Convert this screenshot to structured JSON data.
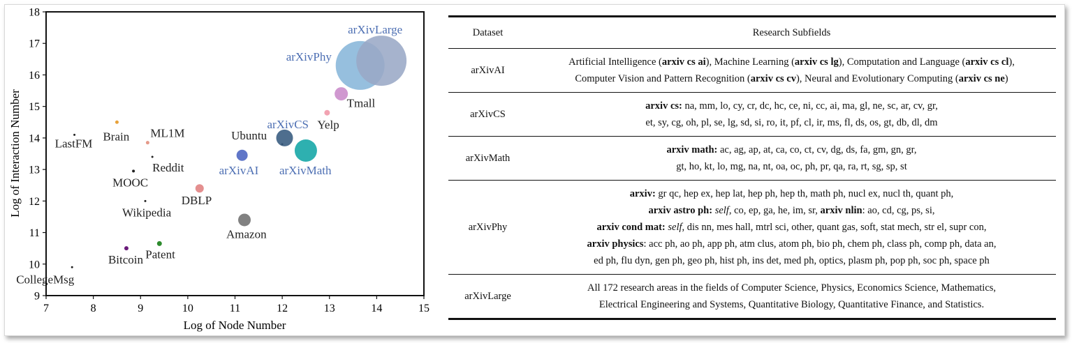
{
  "chart_data": {
    "type": "scatter",
    "xlabel": "Log of Node Number",
    "ylabel": "Log of Interaction Number",
    "xlim": [
      7,
      15
    ],
    "ylim": [
      9,
      18
    ],
    "xticks": [
      "7",
      "8",
      "9",
      "10",
      "11",
      "12",
      "13",
      "14",
      "15"
    ],
    "yticks": [
      "9",
      "10",
      "11",
      "12",
      "13",
      "14",
      "15",
      "16",
      "17",
      "18"
    ],
    "grid": false,
    "points": [
      {
        "label": "LastFM",
        "x": 7.6,
        "y": 14.1,
        "color": "#222222",
        "size": 1.5,
        "highlight": false
      },
      {
        "label": "Brain",
        "x": 8.5,
        "y": 14.5,
        "color": "#e8a23a",
        "size": 2.5,
        "highlight": false
      },
      {
        "label": "ML1M",
        "x": 9.15,
        "y": 13.85,
        "color": "#e59a8a",
        "size": 2.5,
        "highlight": false
      },
      {
        "label": "Reddit",
        "x": 9.25,
        "y": 13.4,
        "color": "#222222",
        "size": 1.5,
        "highlight": false
      },
      {
        "label": "MOOC",
        "x": 8.85,
        "y": 12.95,
        "color": "#222222",
        "size": 2,
        "highlight": false
      },
      {
        "label": "Wikipedia",
        "x": 9.1,
        "y": 12.0,
        "color": "#222222",
        "size": 1.5,
        "highlight": false
      },
      {
        "label": "DBLP",
        "x": 10.25,
        "y": 12.4,
        "color": "#e07f80",
        "size": 6,
        "highlight": false
      },
      {
        "label": "Bitcoin",
        "x": 8.7,
        "y": 10.5,
        "color": "#6a1b7a",
        "size": 3,
        "highlight": false
      },
      {
        "label": "Patent",
        "x": 9.4,
        "y": 10.65,
        "color": "#2e8b2e",
        "size": 3.5,
        "highlight": false
      },
      {
        "label": "CollegeMsg",
        "x": 7.55,
        "y": 9.9,
        "color": "#222222",
        "size": 1.5,
        "highlight": false
      },
      {
        "label": "Amazon",
        "x": 11.2,
        "y": 11.4,
        "color": "#6f6f6f",
        "size": 9,
        "highlight": false
      },
      {
        "label": "Ubuntu",
        "x": 12.0,
        "y": 13.8,
        "color": "#222222",
        "size": 1.5,
        "highlight": false
      },
      {
        "label": "arXivAI",
        "x": 11.15,
        "y": 13.45,
        "color": "#4a63c0",
        "size": 8,
        "highlight": true
      },
      {
        "label": "arXivCS",
        "x": 12.05,
        "y": 14.0,
        "color": "#355a7e",
        "size": 12,
        "highlight": true
      },
      {
        "label": "arXivMath",
        "x": 12.5,
        "y": 13.6,
        "color": "#11a5a5",
        "size": 16,
        "highlight": true
      },
      {
        "label": "Yelp",
        "x": 12.95,
        "y": 14.8,
        "color": "#f2a3b2",
        "size": 4,
        "highlight": false
      },
      {
        "label": "Tmall",
        "x": 13.25,
        "y": 15.4,
        "color": "#c98ac9",
        "size": 9.5,
        "highlight": false
      },
      {
        "label": "arXivPhy",
        "x": 13.65,
        "y": 16.3,
        "color": "#88b6d9",
        "size": 35,
        "highlight": true
      },
      {
        "label": "arXivLarge",
        "x": 14.1,
        "y": 16.45,
        "color": "#9aa9c6",
        "size": 36,
        "highlight": true
      }
    ],
    "label_color_highlight": "#4d6fb3",
    "label_color_default": "#222222"
  },
  "table": {
    "headers": [
      "Dataset",
      "Research Subfields"
    ],
    "rows": [
      {
        "dataset": "arXivAI",
        "lines": [
          [
            [
              "n",
              "Artificial Intelligence ("
            ],
            [
              "b",
              "arxiv cs ai"
            ],
            [
              "n",
              "), Machine Learning ("
            ],
            [
              "b",
              "arxiv cs lg"
            ],
            [
              "n",
              "), Computation and Language ("
            ],
            [
              "b",
              "arxiv cs cl"
            ],
            [
              "n",
              "),"
            ]
          ],
          [
            [
              "n",
              "Computer Vision and Pattern Recognition ("
            ],
            [
              "b",
              "arxiv cs cv"
            ],
            [
              "n",
              "), Neural and Evolutionary Computing ("
            ],
            [
              "b",
              "arxiv cs ne"
            ],
            [
              "n",
              ")"
            ]
          ]
        ]
      },
      {
        "dataset": "arXivCS",
        "lines": [
          [
            [
              "b",
              "arxiv cs:"
            ],
            [
              "n",
              " na, mm, lo, cy, cr, dc, hc, ce, ni, cc, ai, ma, gl, ne, sc, ar, cv, gr,"
            ]
          ],
          [
            [
              "n",
              "et, sy, cg, oh, pl, se, lg, sd, si, ro, it, pf, cl, ir, ms, fl, ds, os, gt, db, dl, dm"
            ]
          ]
        ]
      },
      {
        "dataset": "arXivMath",
        "lines": [
          [
            [
              "b",
              "arxiv math:"
            ],
            [
              "n",
              " ac, ag, ap, at, ca, co, ct, cv, dg, ds, fa, gm, gn, gr,"
            ]
          ],
          [
            [
              "n",
              "gt, ho, kt, lo, mg, na, nt, oa, oc, ph, pr, qa, ra, rt, sg, sp, st"
            ]
          ]
        ]
      },
      {
        "dataset": "arXivPhy",
        "lines": [
          [
            [
              "b",
              "arxiv:"
            ],
            [
              "n",
              " gr qc, hep ex, hep lat, hep ph, hep th, math ph, nucl ex, nucl th, quant ph,"
            ]
          ],
          [
            [
              "b",
              "arxiv astro ph:"
            ],
            [
              "n",
              " "
            ],
            [
              "i",
              "self"
            ],
            [
              "n",
              ", co, ep, ga, he, im, sr,  "
            ],
            [
              "b",
              "arxiv nlin"
            ],
            [
              "n",
              ": ao, cd, cg, ps, si,"
            ]
          ],
          [
            [
              "b",
              "arxiv cond mat:"
            ],
            [
              "n",
              " "
            ],
            [
              "i",
              "self"
            ],
            [
              "n",
              ", dis nn, mes hall, mtrl sci, other, quant gas, soft, stat mech, str el, supr con,"
            ]
          ],
          [
            [
              "b",
              "arxiv physics"
            ],
            [
              "n",
              ": acc ph, ao ph, app ph, atm clus, atom ph, bio ph, chem ph, class ph, comp ph, data an,"
            ]
          ],
          [
            [
              "n",
              "ed ph, flu dyn, gen ph, geo ph, hist ph, ins det, med ph, optics, plasm ph, pop ph, soc ph, space ph"
            ]
          ]
        ]
      },
      {
        "dataset": "arXivLarge",
        "lines": [
          [
            [
              "n",
              "All 172 research areas in the fields of Computer Science, Physics, Economics Science, Mathematics,"
            ]
          ],
          [
            [
              "n",
              "Electrical Engineering and Systems, Quantitative Biology, Quantitative Finance, and Statistics."
            ]
          ]
        ]
      }
    ]
  }
}
